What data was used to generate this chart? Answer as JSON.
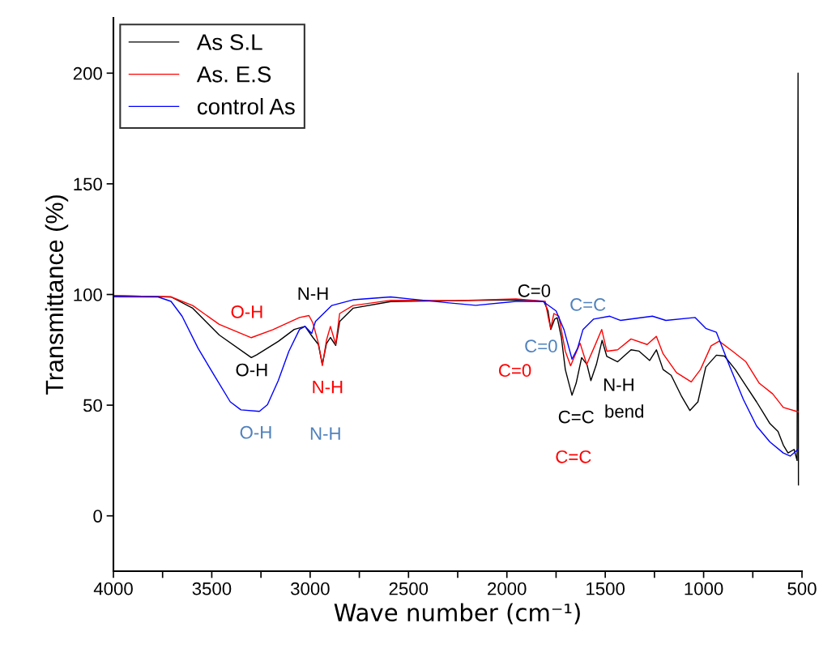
{
  "chart_data": {
    "type": "line",
    "xlabel": "Wave number (cm⁻¹)",
    "ylabel": "Transmittance (%)",
    "xlim": [
      4000,
      500
    ],
    "ylim": [
      -25,
      225
    ],
    "xticks": [
      4000,
      {
        "value": 3750,
        "label": null
      },
      3500,
      {
        "value": 3250,
        "label": null
      },
      3000,
      {
        "value": 2750,
        "label": null
      },
      2500,
      {
        "value": 2250,
        "label": null
      },
      2000,
      {
        "value": 1750,
        "label": null
      },
      1500,
      {
        "value": 1250,
        "label": null
      },
      1000,
      {
        "value": 750,
        "label": null
      },
      500
    ],
    "yticks": [
      0,
      50,
      100,
      150,
      200
    ],
    "grid": false,
    "legend": "top left",
    "marker": "none",
    "line_style": "solid",
    "series": [
      {
        "name": "As S.L",
        "color": "#000000",
        "x": [
          4000,
          3707,
          3597,
          3462,
          3299,
          3271,
          3162,
          3081,
          3026,
          2986,
          2958,
          2938,
          2917,
          2897,
          2870,
          2850,
          2782,
          2591,
          2265,
          1954,
          1812,
          1791,
          1777,
          1757,
          1744,
          1723,
          1703,
          1669,
          1648,
          1620,
          1593,
          1573,
          1545,
          1516,
          1492,
          1437,
          1369,
          1328,
          1274,
          1240,
          1206,
          1165,
          1111,
          1070,
          1029,
          989,
          935,
          894,
          839,
          785,
          731,
          663,
          622,
          595,
          571,
          540,
          525,
          520,
          518
        ],
        "values": [
          99.5,
          98.9,
          93.8,
          81.7,
          71.5,
          72.8,
          78.8,
          84.2,
          85.6,
          80.6,
          77.4,
          68.4,
          77.8,
          80.6,
          77,
          87.8,
          93.8,
          96.8,
          97.2,
          97.6,
          96.9,
          92.6,
          84.2,
          88.9,
          89.5,
          80.6,
          66.1,
          54.5,
          59.9,
          71.5,
          68.4,
          61.1,
          68.4,
          79.3,
          72,
          69.6,
          75,
          74.4,
          70.2,
          75,
          66.1,
          63.5,
          53.8,
          47.6,
          51.5,
          67.2,
          72.6,
          72.2,
          66.1,
          58.8,
          51.5,
          41.7,
          38.1,
          32,
          28.4,
          30,
          25,
          200,
          14
        ]
      },
      {
        "name": "As. E.S",
        "color": "#ff0000",
        "x": [
          4000,
          3707,
          3597,
          3462,
          3299,
          3189,
          3054,
          3006,
          2986,
          2958,
          2938,
          2917,
          2897,
          2870,
          2850,
          2782,
          2591,
          2265,
          1954,
          1805,
          1788,
          1777,
          1761,
          1736,
          1703,
          1676,
          1628,
          1594,
          1553,
          1518,
          1492,
          1437,
          1369,
          1287,
          1240,
          1206,
          1138,
          1063,
          1016,
          962,
          921,
          853,
          785,
          717,
          649,
          595,
          520
        ],
        "values": [
          99.5,
          98.9,
          95,
          86.5,
          80.5,
          84.1,
          89.6,
          90.5,
          87.1,
          78,
          67.9,
          79.3,
          85.6,
          77.5,
          91.4,
          95,
          97.4,
          97.2,
          98,
          96.9,
          88.9,
          84.7,
          91.4,
          90.2,
          74.4,
          67.8,
          78,
          68.4,
          76.8,
          84.2,
          74.4,
          75,
          79.9,
          77.4,
          81.1,
          73.2,
          64.7,
          60.5,
          66.1,
          76.8,
          78.9,
          74.4,
          69.6,
          59.9,
          55.1,
          49,
          47
        ]
      },
      {
        "name": "control As",
        "color": "#0000ff",
        "x": [
          4000,
          3773,
          3707,
          3651,
          3569,
          3488,
          3406,
          3352,
          3258,
          3217,
          3162,
          3108,
          3054,
          3026,
          2992,
          2973,
          2891,
          2782,
          2591,
          2293,
          2158,
          1954,
          1817,
          1750,
          1710,
          1669,
          1641,
          1613,
          1559,
          1477,
          1423,
          1260,
          1192,
          1043,
          989,
          935,
          866,
          798,
          731,
          663,
          595,
          560,
          520
        ],
        "values": [
          99,
          98.9,
          96.9,
          90.2,
          75.6,
          63.5,
          51.5,
          47.9,
          47.2,
          50.2,
          61.1,
          74.4,
          84.2,
          85.6,
          82.4,
          87.8,
          95,
          97.6,
          98.9,
          96.2,
          95.1,
          96.9,
          96.9,
          92.6,
          84.2,
          70.8,
          75.6,
          84.2,
          88.9,
          90.2,
          88.3,
          90.2,
          88.3,
          89.6,
          84.7,
          82.9,
          67.2,
          52.6,
          40.6,
          33.4,
          28.4,
          27,
          30
        ]
      }
    ],
    "annotations": [
      "O-H",
      "N-H",
      "O-H",
      "N-H",
      "O-H",
      "N-H",
      "C=0",
      "C=C",
      "C=0",
      "C=0",
      "N-H",
      "bend",
      "C=C",
      "C=C"
    ]
  }
}
